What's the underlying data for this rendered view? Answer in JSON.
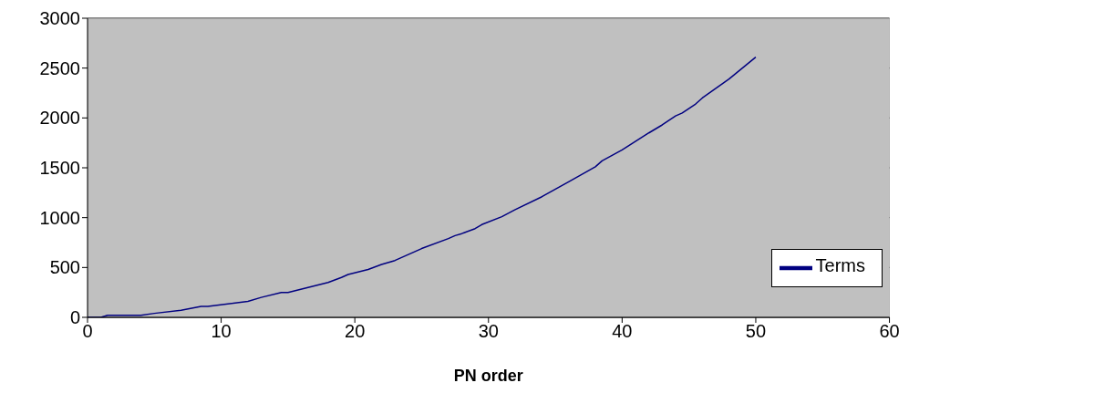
{
  "chart_data": {
    "type": "line",
    "xlabel": "PN order",
    "x": [
      0,
      1,
      1.5,
      4,
      5,
      7,
      8.5,
      9,
      12,
      13,
      14.5,
      15,
      18,
      19,
      19.5,
      21,
      22,
      23,
      24,
      25,
      27,
      27.5,
      28,
      29,
      29.5,
      31,
      32,
      34,
      36,
      38,
      38.5,
      40,
      42,
      43,
      44,
      44.5,
      45.5,
      46,
      48,
      49,
      50
    ],
    "series": [
      {
        "name": "Terms",
        "color": "#000080",
        "values": [
          0,
          0,
          20,
          20,
          40,
          70,
          110,
          110,
          160,
          200,
          250,
          250,
          350,
          400,
          430,
          480,
          530,
          570,
          630,
          690,
          790,
          820,
          840,
          890,
          930,
          1010,
          1080,
          1210,
          1360,
          1510,
          1570,
          1680,
          1850,
          1930,
          2020,
          2050,
          2140,
          2200,
          2390,
          2500,
          2610
        ]
      }
    ],
    "xlim": [
      0,
      60
    ],
    "xticks": [
      0,
      10,
      20,
      30,
      40,
      50,
      60
    ],
    "ylim": [
      0,
      3000
    ],
    "yticks": [
      0,
      500,
      1000,
      1500,
      2000,
      2500,
      3000
    ],
    "grid": "y",
    "legend": "right",
    "marker": "none",
    "line_style": "solid"
  }
}
